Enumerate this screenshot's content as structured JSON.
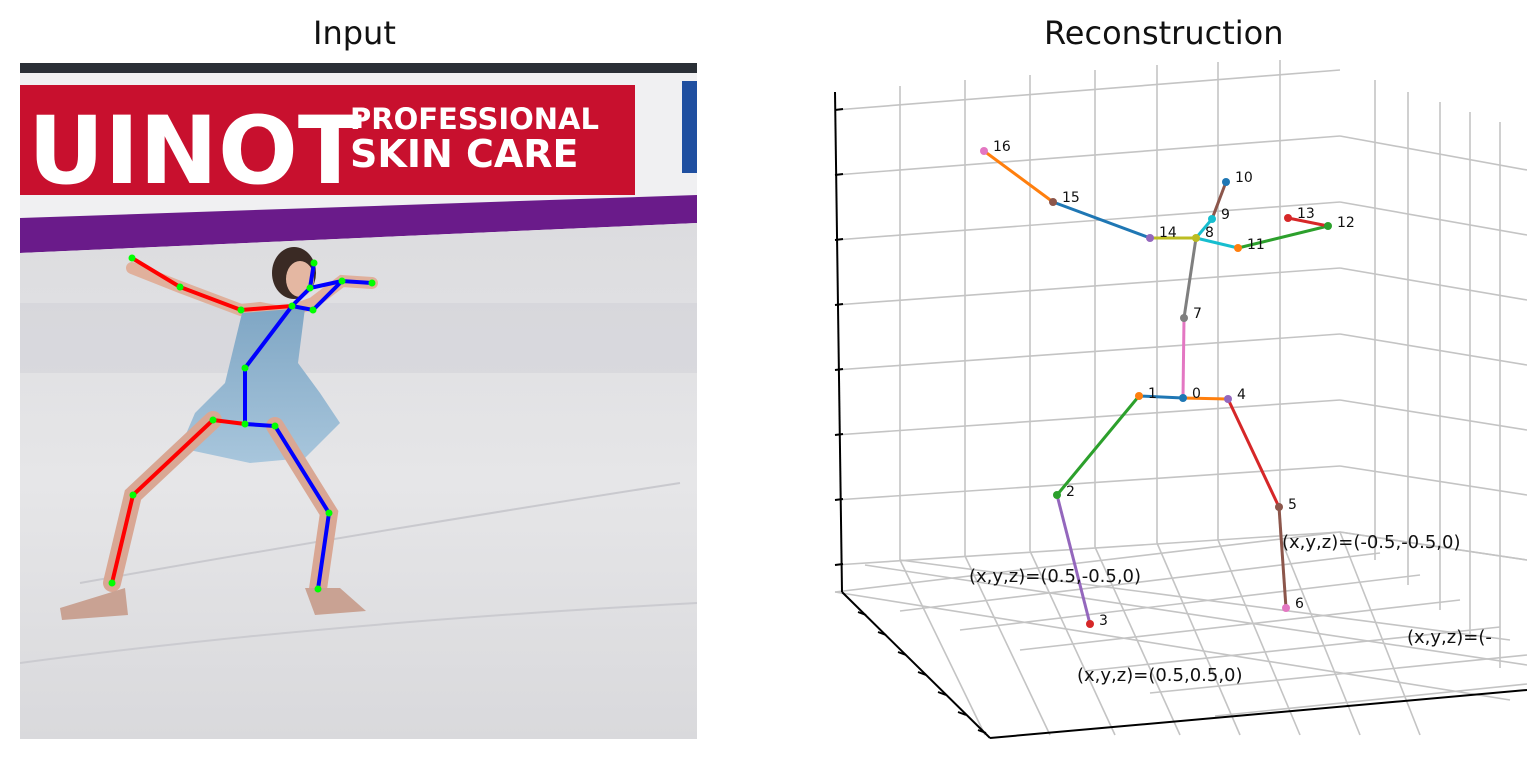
{
  "titles": {
    "input": "Input",
    "reconstruction": "Reconstruction"
  },
  "photo": {
    "banner_main": "UINOT",
    "banner_line1": "PROFESSIONAL",
    "banner_line2": "SKIN CARE"
  },
  "colors": {
    "right_limb": "#ff0000",
    "left_limb": "#0000ff",
    "joint": "#00ff00",
    "banner_red": "#c8102e",
    "banner_purple": "#6a1b8a"
  },
  "joint_labels": [
    "0",
    "1",
    "2",
    "3",
    "4",
    "5",
    "6",
    "7",
    "8",
    "9",
    "10",
    "11",
    "12",
    "13",
    "14",
    "15",
    "16"
  ],
  "corner_labels": {
    "c1": "(x,y,z)=(0.5,-0.5,0)",
    "c2": "(x,y,z)=(-0.5,-0.5,0)",
    "c3": "(x,y,z)=(0.5,0.5,0)",
    "c4": "(x,y,z)=(-"
  }
}
